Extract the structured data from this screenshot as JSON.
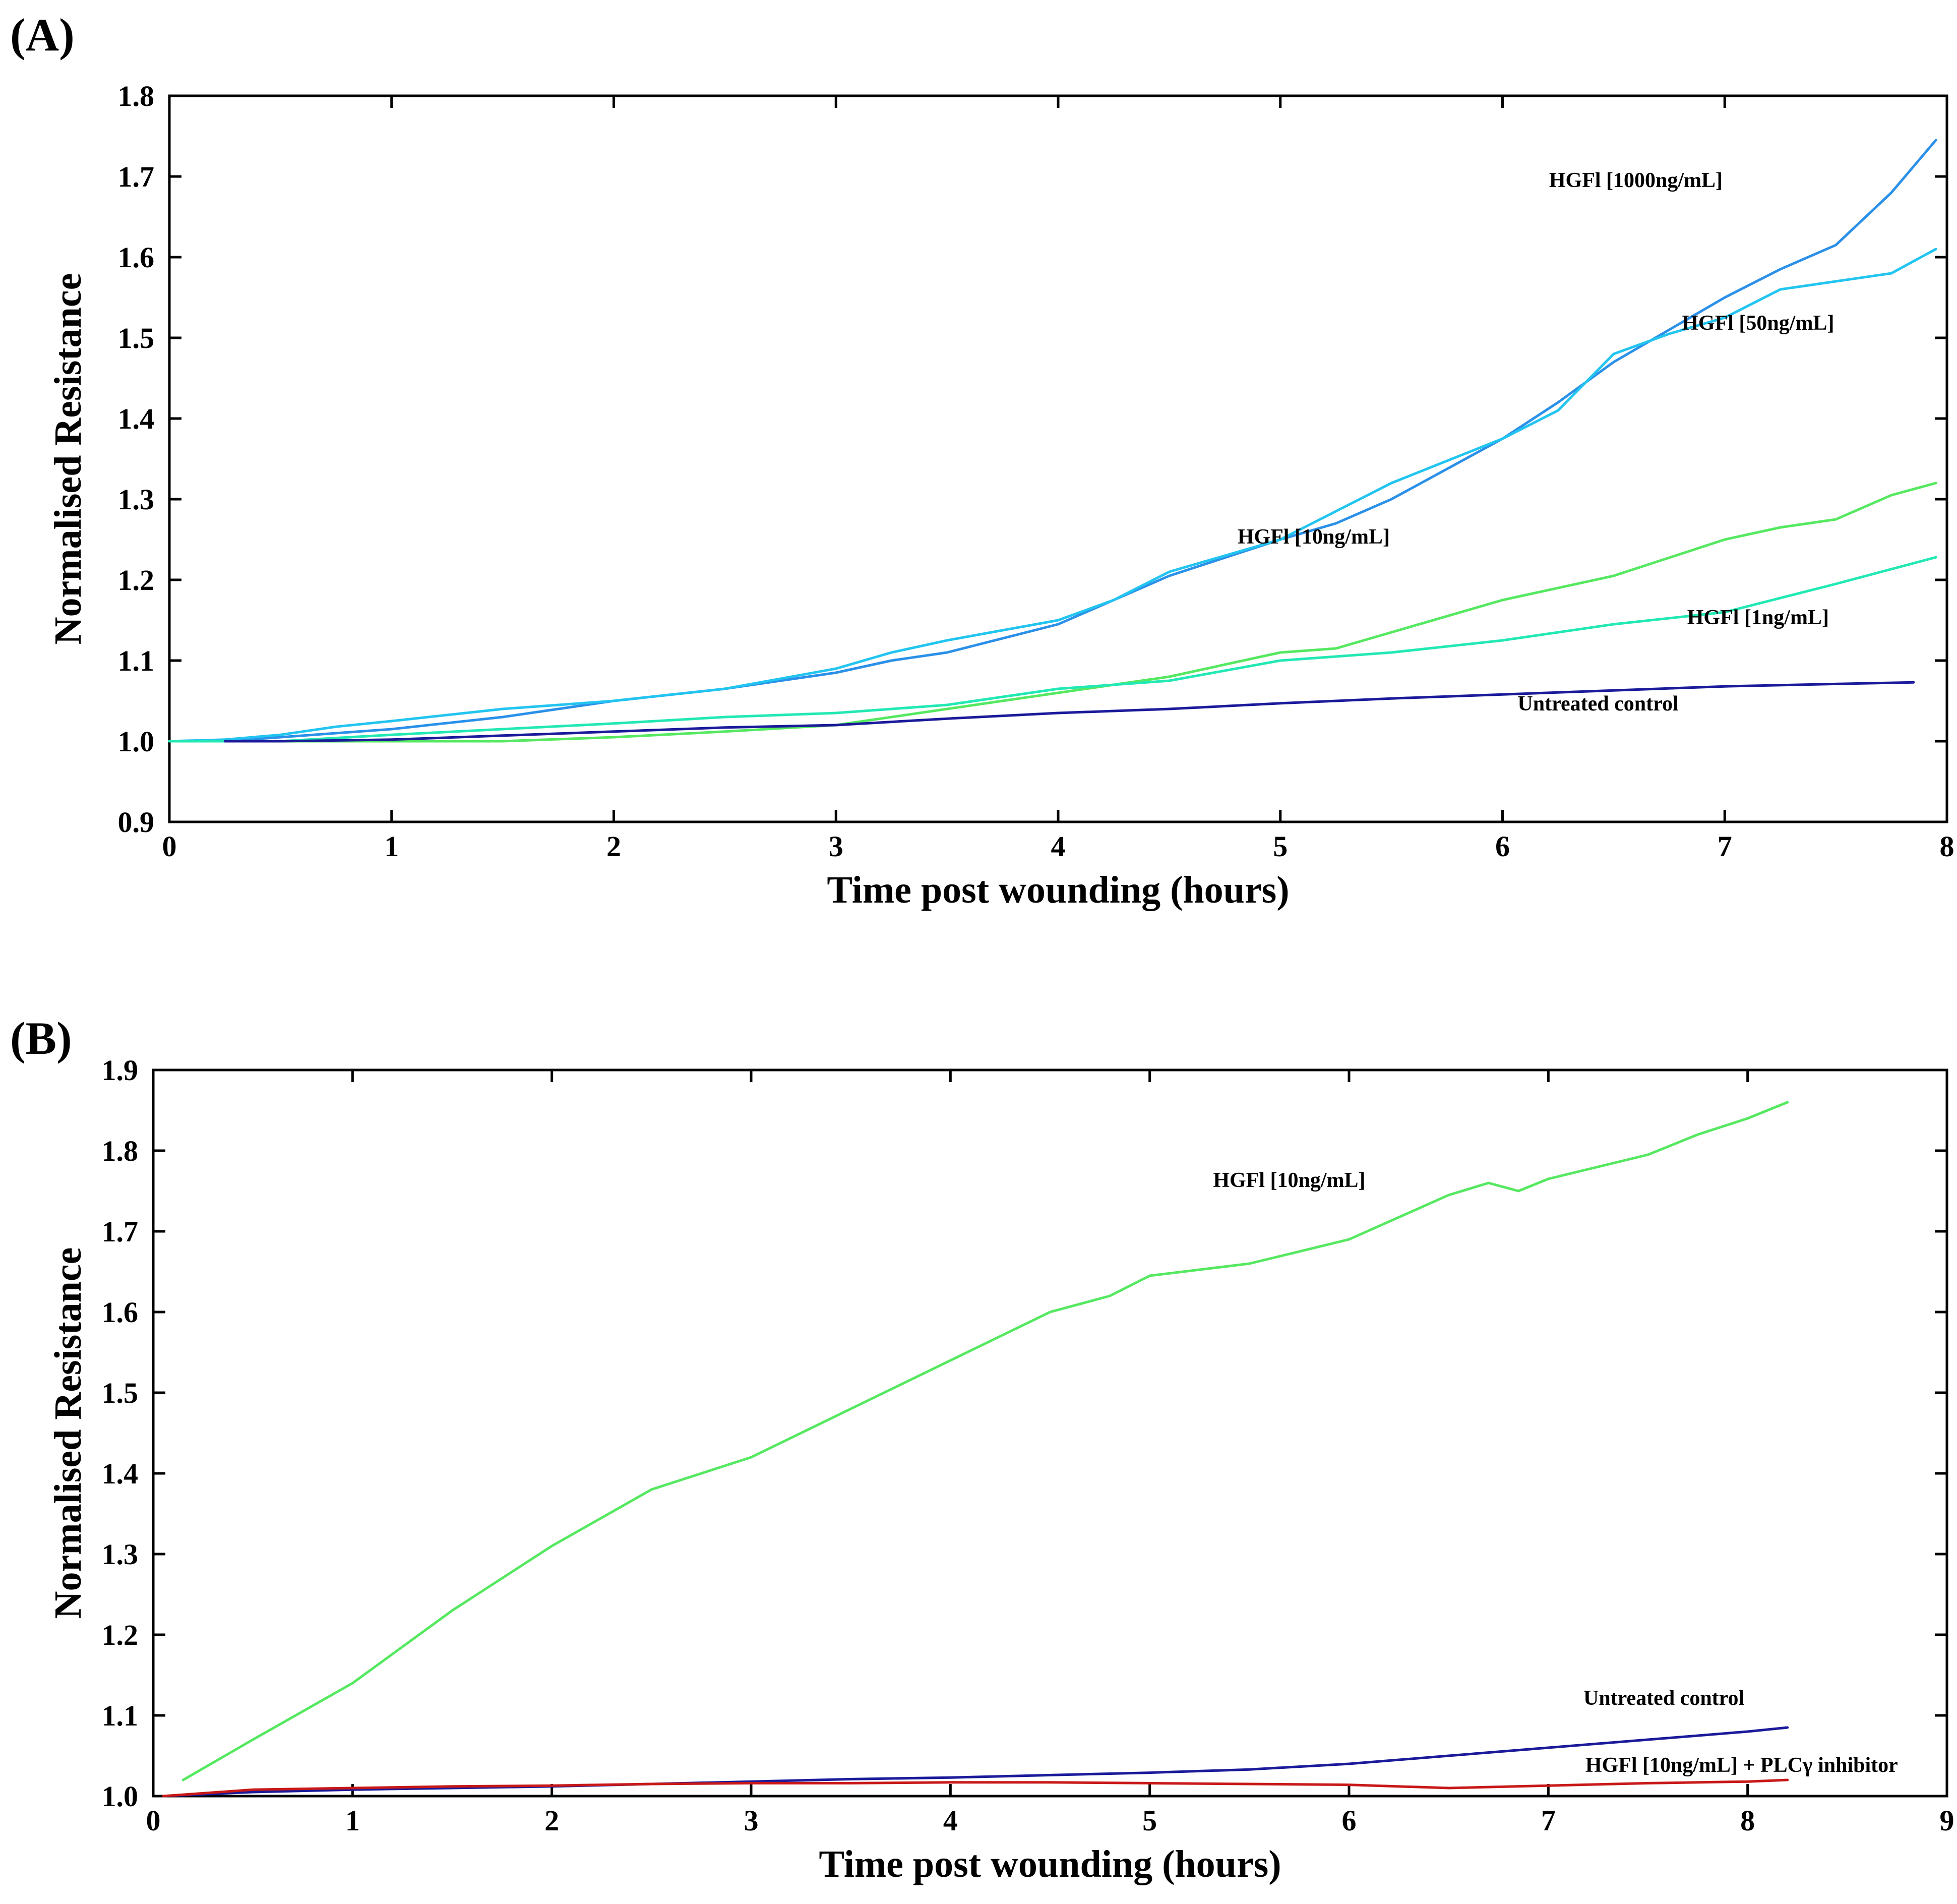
{
  "chart_data": [
    {
      "type": "line",
      "panel_label": "(A)",
      "title": "",
      "xlabel": "Time post wounding (hours)",
      "ylabel": "Normalised Resistance",
      "xlim": [
        0,
        8
      ],
      "ylim": [
        0.9,
        1.8
      ],
      "xticks": [
        0,
        1,
        2,
        3,
        4,
        5,
        6,
        7,
        8
      ],
      "yticks": [
        0.9,
        1.0,
        1.1,
        1.2,
        1.3,
        1.4,
        1.5,
        1.6,
        1.7,
        1.8
      ],
      "ytick_labels": [
        "0.9",
        "1.0",
        "1.1",
        "1.2",
        "1.3",
        "1.4",
        "1.5",
        "1.6",
        "1.7",
        "1.8"
      ],
      "grid": false,
      "series": [
        {
          "name": "HGFl [1000ng/mL]",
          "color": "#2a90e8",
          "label_at": [
            6.6,
            1.687
          ],
          "x": [
            0,
            0.25,
            0.5,
            0.75,
            1.0,
            1.5,
            2.0,
            2.5,
            3.0,
            3.25,
            3.5,
            4.0,
            4.25,
            4.5,
            5.0,
            5.25,
            5.5,
            6.0,
            6.25,
            6.5,
            6.75,
            7.0,
            7.25,
            7.5,
            7.75,
            7.95
          ],
          "y": [
            1.0,
            1.0,
            1.005,
            1.01,
            1.015,
            1.03,
            1.05,
            1.065,
            1.085,
            1.1,
            1.11,
            1.145,
            1.175,
            1.205,
            1.25,
            1.27,
            1.3,
            1.375,
            1.42,
            1.47,
            1.51,
            1.55,
            1.585,
            1.615,
            1.68,
            1.745
          ]
        },
        {
          "name": "HGFl [50ng/mL]",
          "color": "#22c4f0",
          "label_at": [
            7.15,
            1.51
          ],
          "x": [
            0,
            0.25,
            0.5,
            0.75,
            1.0,
            1.5,
            2.0,
            2.5,
            3.0,
            3.25,
            3.5,
            4.0,
            4.25,
            4.5,
            5.0,
            5.25,
            5.5,
            6.0,
            6.25,
            6.5,
            6.75,
            7.0,
            7.25,
            7.5,
            7.75,
            7.95
          ],
          "y": [
            1.0,
            1.002,
            1.008,
            1.018,
            1.025,
            1.04,
            1.05,
            1.065,
            1.09,
            1.11,
            1.125,
            1.15,
            1.175,
            1.21,
            1.25,
            1.285,
            1.32,
            1.375,
            1.41,
            1.48,
            1.505,
            1.525,
            1.56,
            1.57,
            1.58,
            1.61
          ]
        },
        {
          "name": "HGFl [10ng/mL]",
          "color": "#55e860",
          "label_at": [
            5.15,
            1.245
          ],
          "x": [
            0,
            0.5,
            1.0,
            1.5,
            2.0,
            2.5,
            3.0,
            3.5,
            4.0,
            4.5,
            5.0,
            5.25,
            5.5,
            6.0,
            6.5,
            7.0,
            7.25,
            7.5,
            7.75,
            7.95
          ],
          "y": [
            1.0,
            1.0,
            1.0,
            1.0,
            1.005,
            1.012,
            1.02,
            1.04,
            1.06,
            1.08,
            1.11,
            1.115,
            1.135,
            1.175,
            1.205,
            1.25,
            1.265,
            1.275,
            1.305,
            1.32
          ]
        },
        {
          "name": "HGFl [1ng/mL]",
          "color": "#22e8b4",
          "label_at": [
            7.15,
            1.145
          ],
          "x": [
            0,
            0.5,
            1.0,
            1.5,
            2.0,
            2.5,
            3.0,
            3.5,
            4.0,
            4.5,
            5.0,
            5.5,
            6.0,
            6.5,
            7.0,
            7.5,
            7.95
          ],
          "y": [
            1.0,
            1.0,
            1.008,
            1.015,
            1.022,
            1.03,
            1.035,
            1.045,
            1.065,
            1.075,
            1.1,
            1.11,
            1.125,
            1.145,
            1.16,
            1.195,
            1.228
          ]
        },
        {
          "name": "Untreated control",
          "color": "#1a1a9a",
          "label_at": [
            6.43,
            1.038
          ],
          "x": [
            0.25,
            0.5,
            1.0,
            1.5,
            2.0,
            2.5,
            3.0,
            3.5,
            4.0,
            4.5,
            5.0,
            5.5,
            6.0,
            6.5,
            7.0,
            7.5,
            7.85
          ],
          "y": [
            1.0,
            1.0,
            1.002,
            1.007,
            1.012,
            1.017,
            1.02,
            1.028,
            1.035,
            1.04,
            1.047,
            1.053,
            1.058,
            1.063,
            1.068,
            1.071,
            1.073
          ]
        }
      ]
    },
    {
      "type": "line",
      "panel_label": "(B)",
      "title": "",
      "xlabel": "Time post wounding (hours)",
      "ylabel": "Normalised Resistance",
      "xlim": [
        0,
        9
      ],
      "ylim": [
        1.0,
        1.9
      ],
      "xticks": [
        0,
        1,
        2,
        3,
        4,
        5,
        6,
        7,
        8,
        9
      ],
      "yticks": [
        1.0,
        1.1,
        1.2,
        1.3,
        1.4,
        1.5,
        1.6,
        1.7,
        1.8,
        1.9
      ],
      "ytick_labels": [
        "1.0",
        "1.1",
        "1.2",
        "1.3",
        "1.4",
        "1.5",
        "1.6",
        "1.7",
        "1.8",
        "1.9"
      ],
      "grid": false,
      "series": [
        {
          "name": "HGFl [10ng/mL]",
          "color": "#55e860",
          "label_at": [
            5.7,
            1.755
          ],
          "x": [
            0.15,
            0.5,
            1.0,
            1.5,
            2.0,
            2.5,
            3.0,
            3.5,
            4.0,
            4.5,
            4.8,
            5.0,
            5.5,
            6.0,
            6.5,
            6.7,
            6.85,
            7.0,
            7.5,
            7.75,
            8.0,
            8.2
          ],
          "y": [
            1.02,
            1.07,
            1.14,
            1.23,
            1.31,
            1.38,
            1.42,
            1.48,
            1.54,
            1.6,
            1.62,
            1.645,
            1.66,
            1.69,
            1.745,
            1.76,
            1.75,
            1.765,
            1.795,
            1.82,
            1.84,
            1.86
          ]
        },
        {
          "name": "Untreated control",
          "color": "#1a1a9a",
          "label_at": [
            7.58,
            1.113
          ],
          "x": [
            0.05,
            0.5,
            1.0,
            1.5,
            2.0,
            2.5,
            3.0,
            3.5,
            4.0,
            4.5,
            5.0,
            5.5,
            6.0,
            6.5,
            7.0,
            7.5,
            8.0,
            8.2
          ],
          "y": [
            1.0,
            1.005,
            1.008,
            1.01,
            1.012,
            1.015,
            1.018,
            1.021,
            1.023,
            1.026,
            1.029,
            1.033,
            1.04,
            1.05,
            1.06,
            1.07,
            1.08,
            1.085
          ]
        },
        {
          "name": "HGFl [10ng/mL] + PLCγ inhibitor",
          "color": "#c81818",
          "label_at": [
            7.97,
            1.03
          ],
          "x": [
            0.05,
            0.5,
            1.0,
            1.5,
            2.0,
            2.5,
            3.0,
            3.5,
            4.0,
            4.5,
            5.0,
            5.5,
            6.0,
            6.5,
            7.0,
            7.5,
            8.0,
            8.2
          ],
          "y": [
            1.0,
            1.008,
            1.01,
            1.012,
            1.013,
            1.015,
            1.016,
            1.016,
            1.017,
            1.017,
            1.016,
            1.015,
            1.014,
            1.01,
            1.013,
            1.016,
            1.018,
            1.02
          ]
        }
      ]
    }
  ]
}
